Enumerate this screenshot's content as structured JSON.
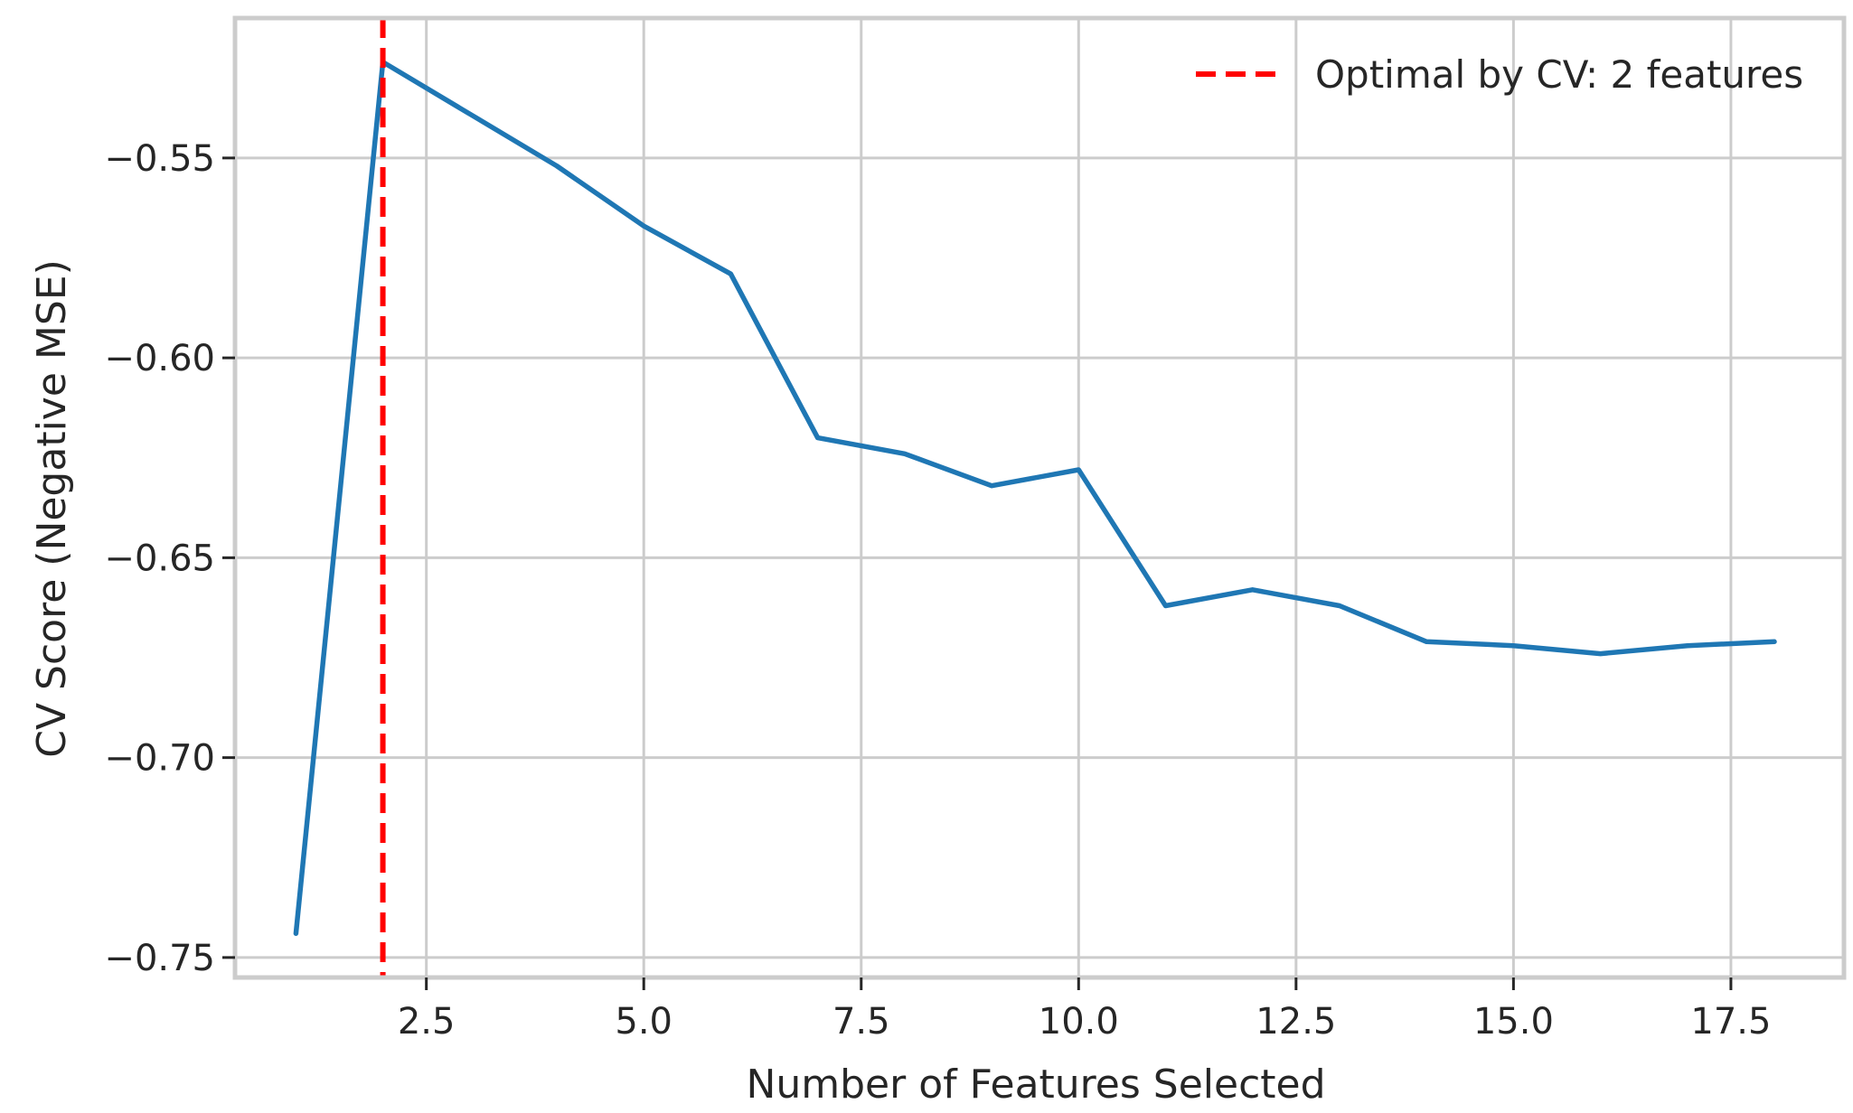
{
  "chart_data": {
    "type": "line",
    "title": "",
    "xlabel": "Number of Features Selected",
    "ylabel": "CV Score (Negative MSE)",
    "xlim": [
      0.3,
      18.8
    ],
    "ylim": [
      -0.755,
      -0.515
    ],
    "xticks": [
      2.5,
      5.0,
      7.5,
      10.0,
      12.5,
      15.0,
      17.5
    ],
    "xtick_labels": [
      "2.5",
      "5.0",
      "7.5",
      "10.0",
      "12.5",
      "15.0",
      "17.5"
    ],
    "yticks": [
      -0.55,
      -0.6,
      -0.65,
      -0.7,
      -0.75
    ],
    "ytick_labels": [
      "−0.55",
      "−0.60",
      "−0.65",
      "−0.70",
      "−0.75"
    ],
    "grid": true,
    "legend_position": "top-right",
    "series": [
      {
        "name": "",
        "color": "#1f77b4",
        "x": [
          1,
          2,
          3,
          4,
          5,
          6,
          7,
          8,
          9,
          10,
          11,
          12,
          13,
          14,
          15,
          16,
          17,
          18
        ],
        "y": [
          -0.744,
          -0.526,
          -0.539,
          -0.552,
          -0.567,
          -0.579,
          -0.62,
          -0.624,
          -0.632,
          -0.628,
          -0.662,
          -0.658,
          -0.662,
          -0.671,
          -0.672,
          -0.674,
          -0.672,
          -0.671
        ]
      }
    ],
    "annotations": [
      {
        "type": "vline",
        "x": 2,
        "color": "#ff0000",
        "style": "dashed",
        "label": "Optimal by CV: 2 features"
      }
    ]
  }
}
